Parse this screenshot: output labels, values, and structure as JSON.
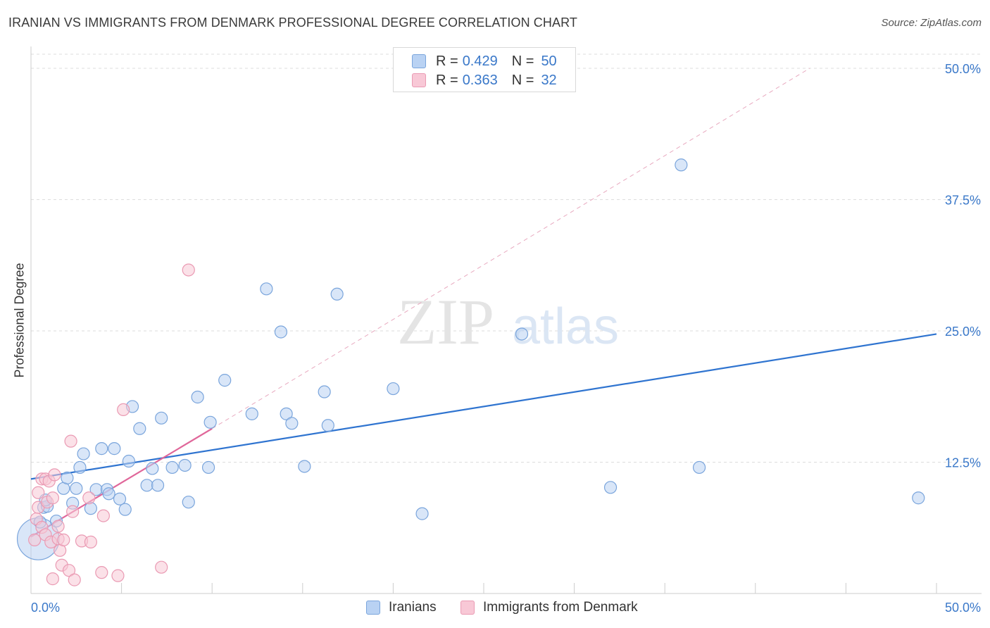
{
  "title": "IRANIAN VS IMMIGRANTS FROM DENMARK PROFESSIONAL DEGREE CORRELATION CHART",
  "source": "Source: ZipAtlas.com",
  "watermark": {
    "zip": "ZIP",
    "atlas": "atlas"
  },
  "legend": {
    "rows": [
      {
        "r_label": "R =",
        "r_value": "0.429",
        "n_label": "N =",
        "n_value": "50"
      },
      {
        "r_label": "R =",
        "r_value": "0.363",
        "n_label": "N =",
        "n_value": "32"
      }
    ]
  },
  "colors": {
    "blue_fill": "#b9d2f3",
    "blue_stroke": "#7aa5dc",
    "blue_line": "#2f74d0",
    "pink_fill": "#f8c8d6",
    "pink_stroke": "#ea9ab3",
    "pink_line": "#e0679a",
    "grid": "#dddddd",
    "tick_label": "#3a78c9"
  },
  "chart_data": {
    "type": "scatter",
    "title": "IRANIAN VS IMMIGRANTS FROM DENMARK PROFESSIONAL DEGREE CORRELATION CHART",
    "xlabel": "",
    "ylabel": "Professional Degree",
    "xlim": [
      0,
      50
    ],
    "ylim": [
      0,
      50
    ],
    "x_tick_labels": [
      "0.0%",
      "50.0%"
    ],
    "y_tick_labels": [
      "12.5%",
      "25.0%",
      "37.5%",
      "50.0%"
    ],
    "y_ticks": [
      12.5,
      25,
      37.5,
      50
    ],
    "grid": true,
    "legend_position": "top-center",
    "series": [
      {
        "name": "Iranians",
        "color": "#b9d2f3",
        "trend": {
          "x0": 0,
          "y0": 10.9,
          "x1": 50,
          "y1": 24.7
        },
        "points": [
          [
            0.4,
            5.2,
            3.5
          ],
          [
            0.5,
            6.8,
            1
          ],
          [
            0.7,
            8.2,
            1
          ],
          [
            0.9,
            8.3,
            1
          ],
          [
            0.8,
            8.9,
            1
          ],
          [
            1.4,
            6.9,
            1
          ],
          [
            1.8,
            10.0,
            1
          ],
          [
            2.0,
            11.0,
            1
          ],
          [
            2.3,
            8.6,
            1
          ],
          [
            2.5,
            10.0,
            1
          ],
          [
            2.7,
            12.0,
            1
          ],
          [
            2.9,
            13.3,
            1
          ],
          [
            3.3,
            8.1,
            1
          ],
          [
            3.6,
            9.9,
            1
          ],
          [
            3.9,
            13.8,
            1
          ],
          [
            4.2,
            9.9,
            1
          ],
          [
            4.3,
            9.5,
            1
          ],
          [
            4.6,
            13.8,
            1
          ],
          [
            4.9,
            9.0,
            1
          ],
          [
            5.2,
            8.0,
            1
          ],
          [
            5.4,
            12.6,
            1
          ],
          [
            5.6,
            17.8,
            1
          ],
          [
            6.0,
            15.7,
            1
          ],
          [
            6.4,
            10.3,
            1
          ],
          [
            6.7,
            11.9,
            1
          ],
          [
            7.0,
            10.3,
            1
          ],
          [
            7.2,
            16.7,
            1
          ],
          [
            7.8,
            12.0,
            1
          ],
          [
            8.5,
            12.2,
            1
          ],
          [
            8.7,
            8.7,
            1
          ],
          [
            9.2,
            18.7,
            1
          ],
          [
            9.8,
            12.0,
            1
          ],
          [
            9.9,
            16.3,
            1
          ],
          [
            10.7,
            20.3,
            1
          ],
          [
            12.2,
            17.1,
            1
          ],
          [
            13.0,
            29.0,
            1
          ],
          [
            13.8,
            24.9,
            1
          ],
          [
            14.1,
            17.1,
            1
          ],
          [
            14.4,
            16.2,
            1
          ],
          [
            15.1,
            12.1,
            1
          ],
          [
            16.2,
            19.2,
            1
          ],
          [
            16.4,
            16.0,
            1
          ],
          [
            16.9,
            28.5,
            1
          ],
          [
            20.0,
            19.5,
            1
          ],
          [
            21.6,
            7.6,
            1
          ],
          [
            27.1,
            24.7,
            1
          ],
          [
            32.0,
            10.1,
            1
          ],
          [
            35.9,
            40.8,
            1
          ],
          [
            36.9,
            12.0,
            1
          ],
          [
            49.0,
            9.1,
            1
          ]
        ]
      },
      {
        "name": "Immigrants from Denmark",
        "color": "#f8c8d6",
        "trend": {
          "x0": 0,
          "y0": 5.4,
          "x1": 10.0,
          "y1": 15.7
        },
        "projection": {
          "x0": 10.0,
          "y0": 15.7,
          "x1": 43.0,
          "y1": 50.0
        },
        "points": [
          [
            0.2,
            5.1,
            1
          ],
          [
            0.3,
            7.1,
            1
          ],
          [
            0.4,
            8.2,
            1
          ],
          [
            0.4,
            9.6,
            1
          ],
          [
            0.6,
            10.9,
            1
          ],
          [
            0.6,
            6.3,
            1
          ],
          [
            0.8,
            5.6,
            1
          ],
          [
            0.8,
            10.9,
            1
          ],
          [
            0.9,
            8.7,
            1
          ],
          [
            1.0,
            10.7,
            1
          ],
          [
            1.1,
            4.9,
            1
          ],
          [
            1.2,
            9.1,
            1
          ],
          [
            1.2,
            1.4,
            1
          ],
          [
            1.3,
            11.3,
            1
          ],
          [
            1.5,
            6.4,
            1
          ],
          [
            1.5,
            5.2,
            1
          ],
          [
            1.6,
            4.1,
            1
          ],
          [
            1.7,
            2.7,
            1
          ],
          [
            1.8,
            5.1,
            1
          ],
          [
            2.1,
            2.2,
            1
          ],
          [
            2.2,
            14.5,
            1
          ],
          [
            2.3,
            7.8,
            1
          ],
          [
            2.4,
            1.3,
            1
          ],
          [
            2.8,
            5.0,
            1
          ],
          [
            3.2,
            9.1,
            1
          ],
          [
            3.3,
            4.9,
            1
          ],
          [
            3.9,
            2.0,
            1
          ],
          [
            4.0,
            7.4,
            1
          ],
          [
            4.8,
            1.7,
            1
          ],
          [
            5.1,
            17.5,
            1
          ],
          [
            7.2,
            2.5,
            1
          ],
          [
            8.7,
            30.8,
            1
          ]
        ]
      }
    ]
  },
  "bottom_legend": {
    "items": [
      "Iranians",
      "Immigrants from Denmark"
    ]
  }
}
